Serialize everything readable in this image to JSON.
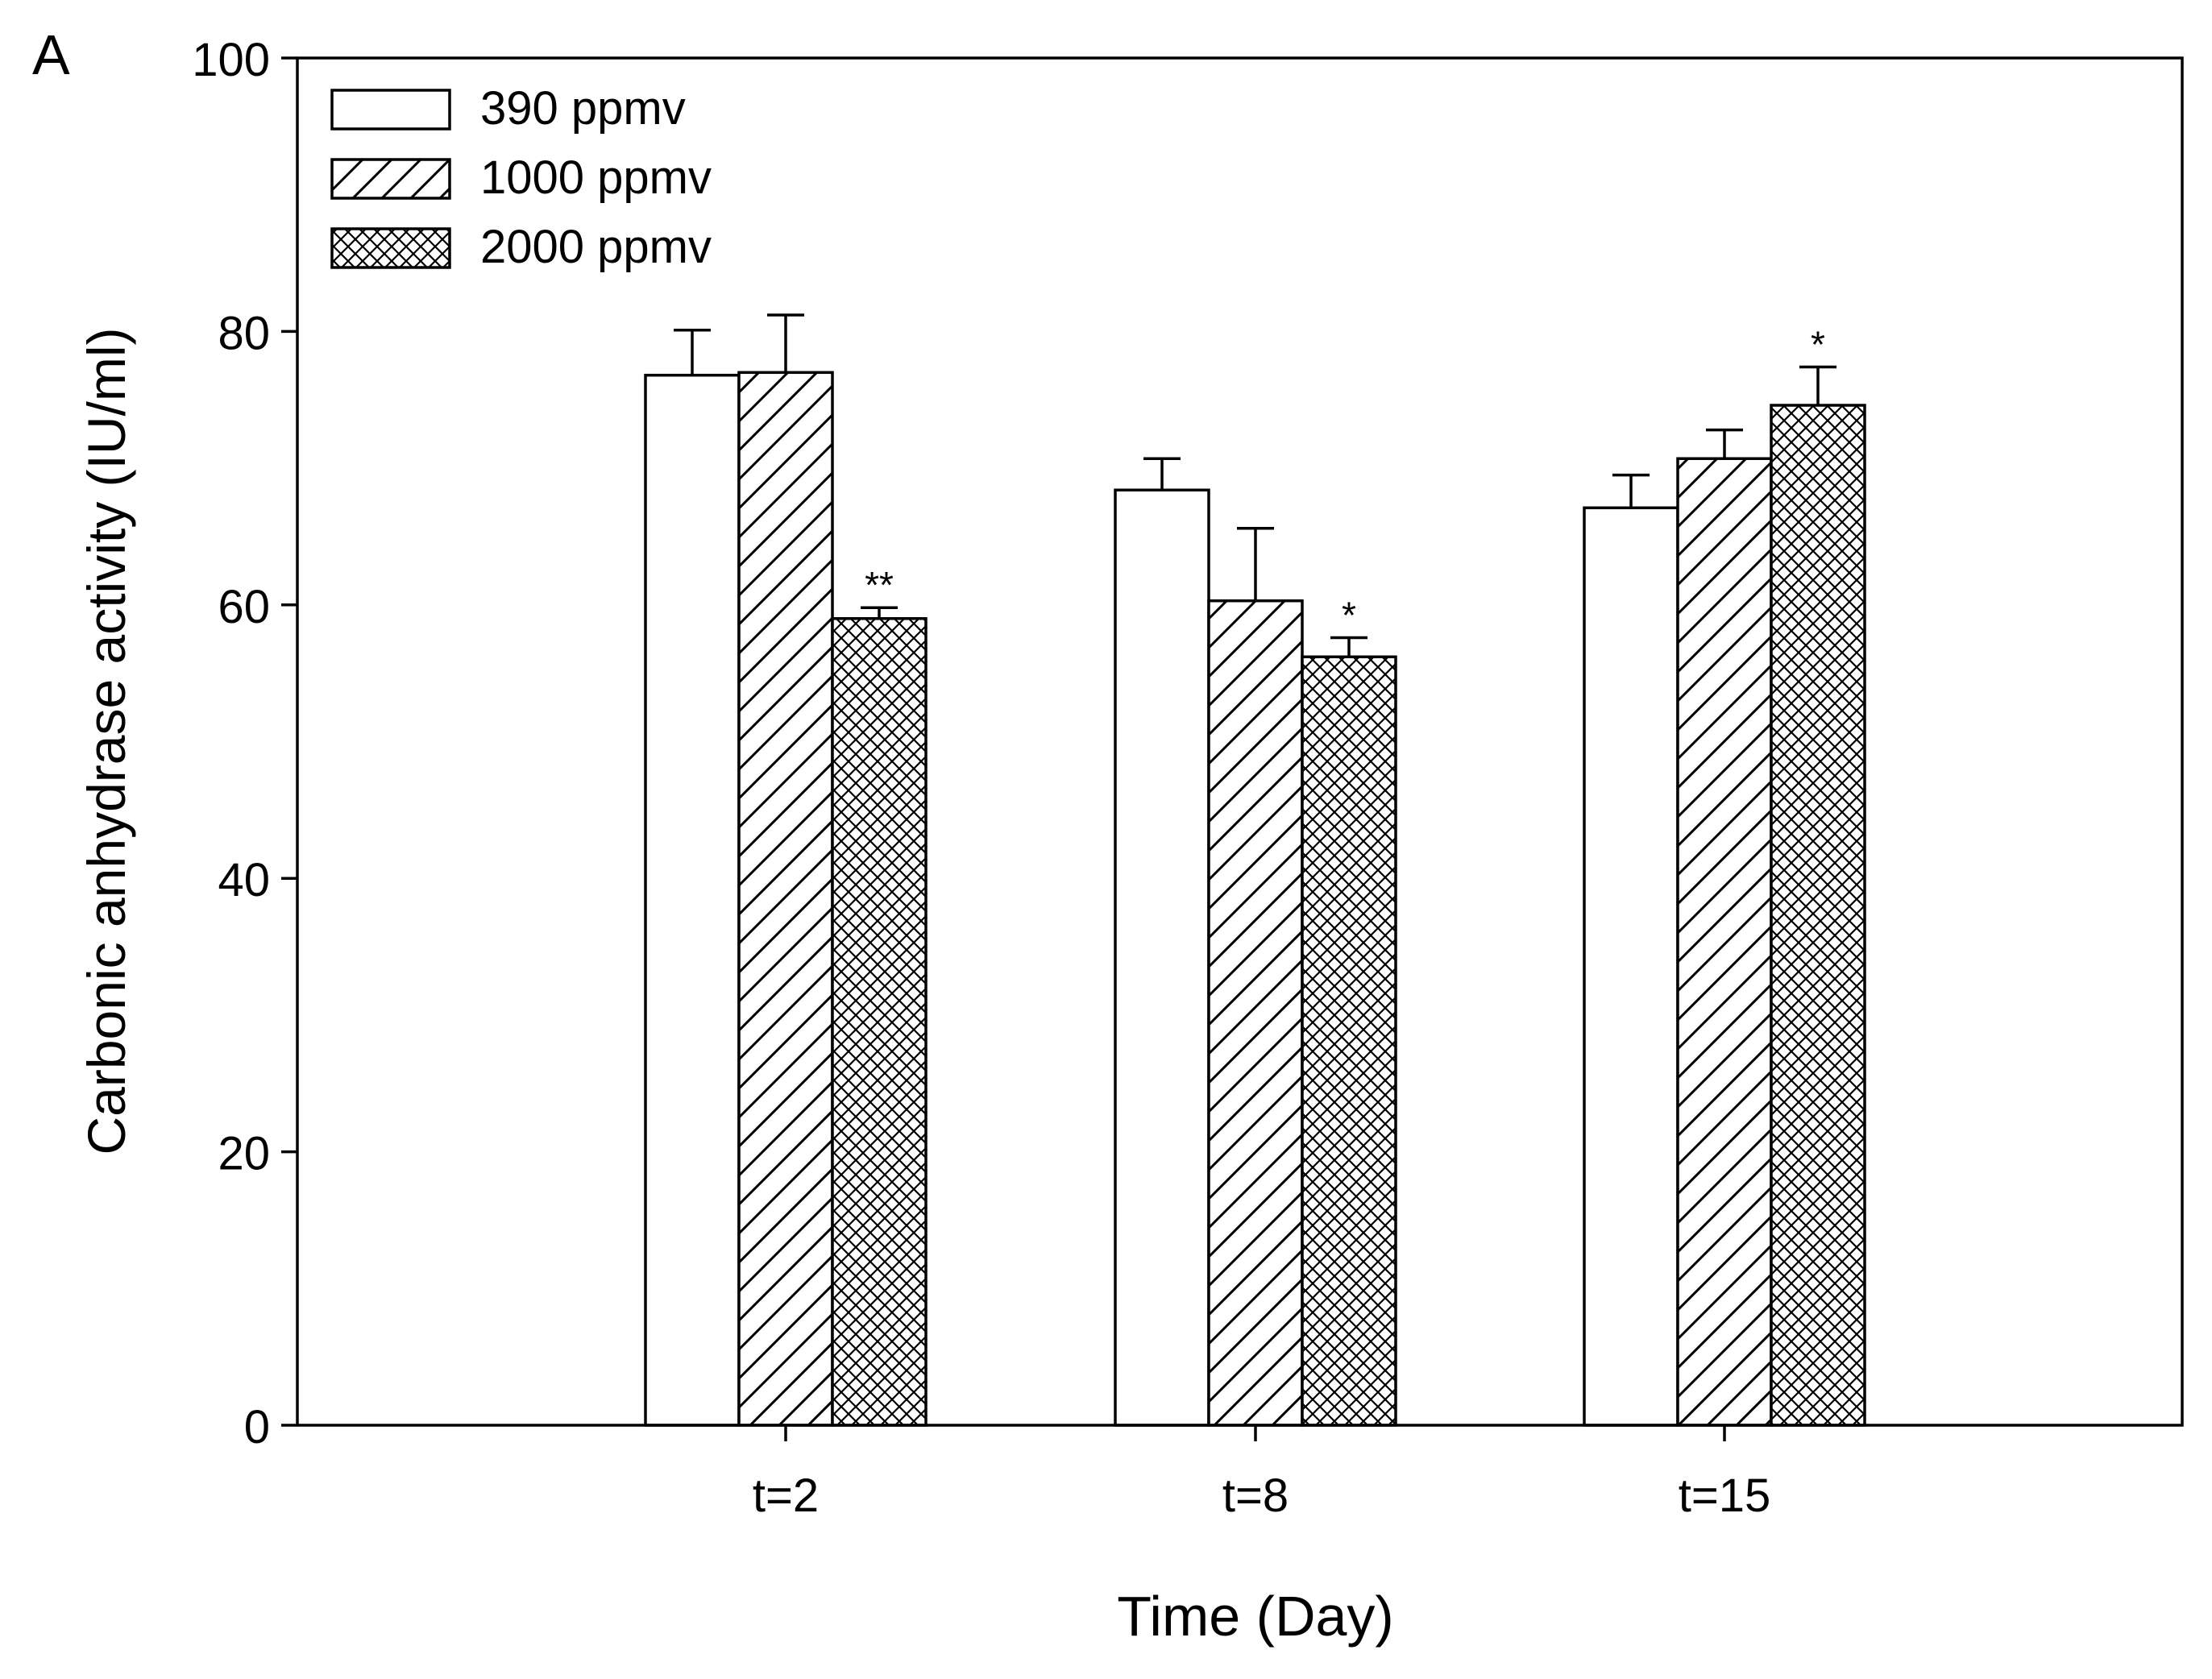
{
  "chart_data": {
    "type": "bar",
    "panel_label": "A",
    "title": "",
    "xlabel": "Time (Day)",
    "ylabel": "Carbonic anhydrase activity (IU/ml)",
    "ylim": [
      0,
      100
    ],
    "yticks": [
      0,
      20,
      40,
      60,
      80,
      100
    ],
    "categories": [
      "t=2",
      "t=8",
      "t=15"
    ],
    "grid": false,
    "legend_position": "top-left",
    "series": [
      {
        "name": "390 ppmv",
        "pattern": "open",
        "values": [
          76.8,
          68.4,
          67.1
        ],
        "errors": [
          3.3,
          2.3,
          2.4
        ],
        "annotations": [
          "",
          "",
          ""
        ]
      },
      {
        "name": "1000 ppmv",
        "pattern": "diagonal-hatch",
        "values": [
          77.0,
          60.3,
          70.7
        ],
        "errors": [
          4.2,
          5.3,
          2.1
        ],
        "annotations": [
          "",
          "",
          ""
        ]
      },
      {
        "name": "2000 ppmv",
        "pattern": "crosshatch",
        "values": [
          59.0,
          56.2,
          74.6
        ],
        "errors": [
          0.8,
          1.4,
          2.8
        ],
        "annotations": [
          "**",
          "*",
          "*"
        ]
      }
    ],
    "colors": {
      "stroke": "#000000",
      "fill": "#ffffff",
      "text": "#000000"
    }
  }
}
